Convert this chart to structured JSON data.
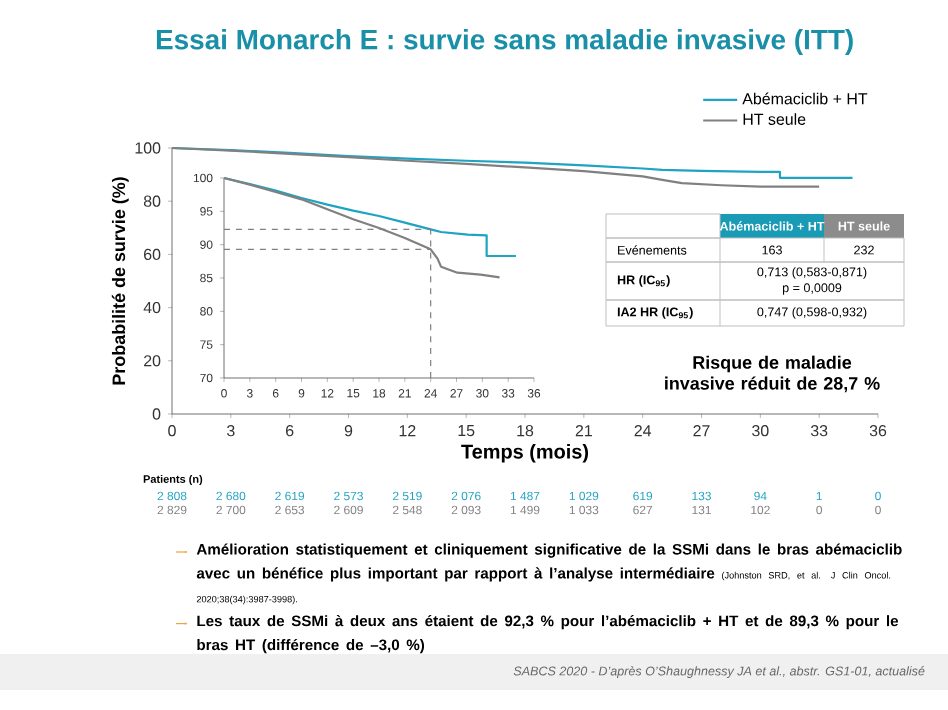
{
  "chart_data": [
    {
      "type": "line",
      "title": "Essai Monarch E : survie sans maladie invasive  (ITT)",
      "xlabel": "Temps (mois)",
      "ylabel": "Probabilité de survie (%)",
      "xlim": [
        0,
        36
      ],
      "xticks": [
        0,
        3,
        6,
        9,
        12,
        15,
        18,
        21,
        24,
        27,
        30,
        33,
        36
      ],
      "ylim": [
        0,
        100
      ],
      "yticks": [
        0,
        20,
        40,
        60,
        80,
        100
      ],
      "legend": "top right",
      "marker": "none",
      "line_style": "solid",
      "series": [
        {
          "name": "Abémaciclib + HT",
          "color": "#1fa3c2",
          "x": [
            0,
            3,
            6,
            9,
            12,
            15,
            18,
            21,
            24,
            25,
            27,
            30,
            31,
            31,
            34.7
          ],
          "values": [
            100,
            99.2,
            98.2,
            97,
            96,
            95.2,
            94.5,
            93.5,
            92.3,
            91.8,
            91.4,
            91,
            91,
            88.8,
            88.8
          ]
        },
        {
          "name": "HT seule",
          "color": "#808080",
          "x": [
            0,
            3,
            6,
            9,
            12,
            15,
            18,
            21,
            24,
            25,
            26,
            28,
            30,
            33
          ],
          "values": [
            100,
            99,
            97.8,
            96.6,
            95.2,
            94,
            92.7,
            91.3,
            89.3,
            88,
            86.8,
            86,
            85.5,
            85.5
          ]
        }
      ],
      "annotations": [
        "Abémaciclib + HT",
        "HT seule",
        "Evénements",
        "163",
        "232",
        "HR (IC$_{95}$)",
        "0,713 (0,583-0,871)",
        "p = 0,0009",
        "IA2 HR (IC$_{95}$)",
        "0,747 (0,598-0,932)",
        "Risque de maladie invasive réduit de 28,7 %",
        "Patients (n)",
        "2 808",
        "2 680",
        "2 619",
        "2 573",
        "2 519",
        "2 076",
        "1 487",
        "1 029",
        "619",
        "133",
        "94",
        "1",
        "0",
        "2 829",
        "2 700",
        "2 653",
        "2 609",
        "2 548",
        "2 093",
        "1 499",
        "1 033",
        "627",
        "131",
        "102",
        "0",
        "0",
        "Amélioration statistiquement et cliniquement significative de la SSMi dans le bras abémaciclib avec un bénéfice plus important par rapport à l’analyse intermédiaire",
        "(Johnston SRD, et al. J Clin Oncol. 2020;38(34):3987-3998).",
        "Les taux de SSMi à deux ans étaient de 92,3 % pour l’abémaciclib + HT et de 89,3 % pour le bras HT (différence de –3,0 %)",
        "SABCS 2020 - D’après O’Shaughnessy JA et al., abstr. GS1-01, actualisé"
      ]
    },
    {
      "type": "line",
      "xlim": [
        0,
        36
      ],
      "xticks": [
        0,
        3,
        6,
        9,
        12,
        15,
        18,
        21,
        24,
        27,
        30,
        33,
        36
      ],
      "ylim": [
        70,
        100
      ],
      "yticks": [
        70,
        75,
        80,
        85,
        90,
        95,
        100
      ],
      "marker": "none",
      "line_style": "solid",
      "series": [
        {
          "color": "#1fa3c2",
          "x": [
            0,
            3,
            6,
            9,
            12,
            15,
            18,
            21,
            24,
            25.2,
            28.3,
            30.5,
            30.5,
            33.9
          ],
          "values": [
            100,
            99.1,
            98.1,
            97,
            96,
            95.1,
            94.3,
            93.3,
            92.3,
            91.9,
            91.5,
            91.4,
            88.3,
            88.3
          ]
        },
        {
          "color": "#808080",
          "x": [
            0,
            3,
            6,
            9,
            12,
            15,
            18,
            21,
            24,
            24.8,
            25.2,
            27.1,
            29.8,
            32
          ],
          "values": [
            100,
            99,
            97.9,
            96.8,
            95.3,
            93.8,
            92.5,
            91,
            89.3,
            87.9,
            86.7,
            85.8,
            85.5,
            85.1
          ]
        }
      ],
      "ref_lines": [
        {
          "axis": "y",
          "value": 92.3,
          "color": "#808080",
          "line_style": "dashed"
        },
        {
          "axis": "y",
          "value": 89.3,
          "color": "#808080",
          "line_style": "dashed"
        },
        {
          "axis": "x",
          "value": 24,
          "color": "#808080",
          "line_style": "dashed"
        }
      ]
    }
  ]
}
